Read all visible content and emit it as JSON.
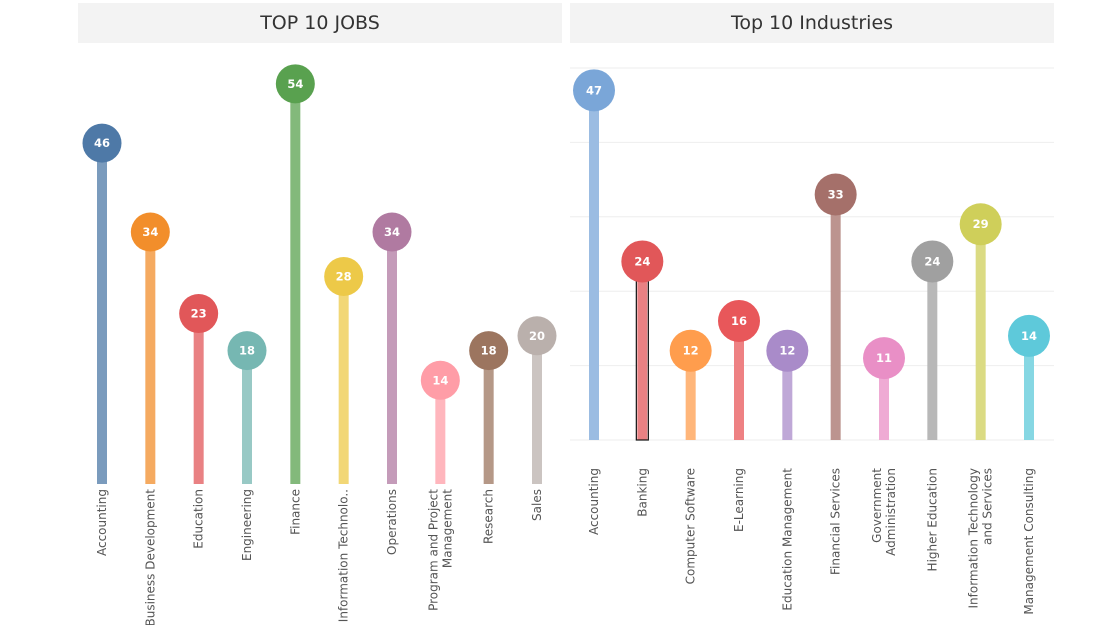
{
  "chart_data": [
    {
      "type": "lollipop",
      "title": "TOP 10 JOBS",
      "categories": [
        [
          "Accounting"
        ],
        [
          "Business Development"
        ],
        [
          "Education"
        ],
        [
          "Engineering"
        ],
        [
          "Finance"
        ],
        [
          "Information Technolo.."
        ],
        [
          "Operations"
        ],
        [
          "Program and Project",
          "Management"
        ],
        [
          "Research"
        ],
        [
          "Sales"
        ]
      ],
      "values": [
        46,
        34,
        23,
        18,
        54,
        28,
        34,
        14,
        18,
        20
      ],
      "colors": [
        "#4e79a7",
        "#f28e2b",
        "#e15759",
        "#76b7b2",
        "#59a14f",
        "#edc948",
        "#b07aa1",
        "#ff9da7",
        "#9c755f",
        "#bab0ac"
      ],
      "ylim": [
        0,
        56
      ],
      "grid": false
    },
    {
      "type": "lollipop",
      "title": "Top 10 Industries",
      "categories": [
        [
          "Accounting"
        ],
        [
          "Banking"
        ],
        [
          "Computer Software"
        ],
        [
          "E-Learning"
        ],
        [
          "Education Management"
        ],
        [
          "Financial Services"
        ],
        [
          "Government",
          "Administration"
        ],
        [
          "Higher Education"
        ],
        [
          "Information Technology",
          "and Services"
        ],
        [
          "Management Consulting"
        ]
      ],
      "values": [
        47,
        24,
        12,
        16,
        12,
        33,
        11,
        24,
        29,
        14
      ],
      "colors": [
        "#7aa6d8",
        "#e15759",
        "#ff9d4d",
        "#e8575a",
        "#a98bc9",
        "#a5706a",
        "#e98fc6",
        "#a0a0a0",
        "#cfcf5a",
        "#5ec9da"
      ],
      "ylim": [
        0,
        50
      ],
      "grid": true
    }
  ]
}
